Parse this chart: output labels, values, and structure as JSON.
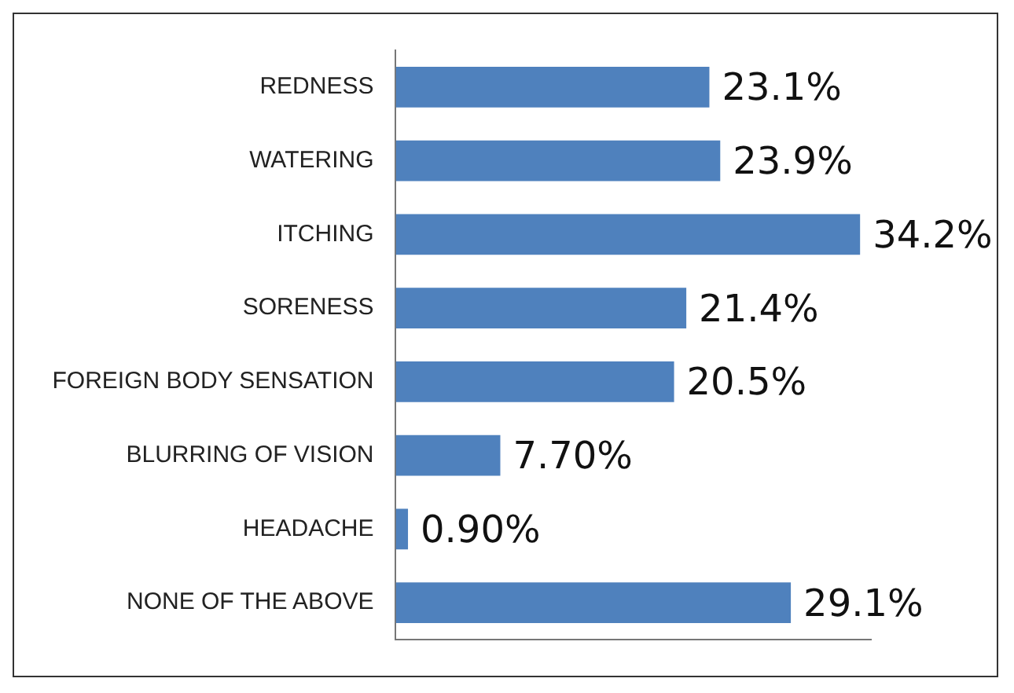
{
  "chart_data": {
    "type": "bar",
    "orientation": "horizontal",
    "categories": [
      "REDNESS",
      "WATERING",
      "ITCHING",
      "SORENESS",
      "FOREIGN BODY SENSATION",
      "BLURRING OF VISION",
      "HEADACHE",
      "NONE OF THE ABOVE"
    ],
    "values": [
      23.1,
      23.9,
      34.2,
      21.4,
      20.5,
      7.7,
      0.9,
      29.1
    ],
    "value_labels": [
      "23.1%",
      "23.9%",
      "34.2%",
      "21.4%",
      "20.5%",
      "7.70%",
      "0.90%",
      "29.1%"
    ],
    "color": "#4f81bd",
    "tick_labels": "y",
    "grid": false,
    "legend": false
  }
}
